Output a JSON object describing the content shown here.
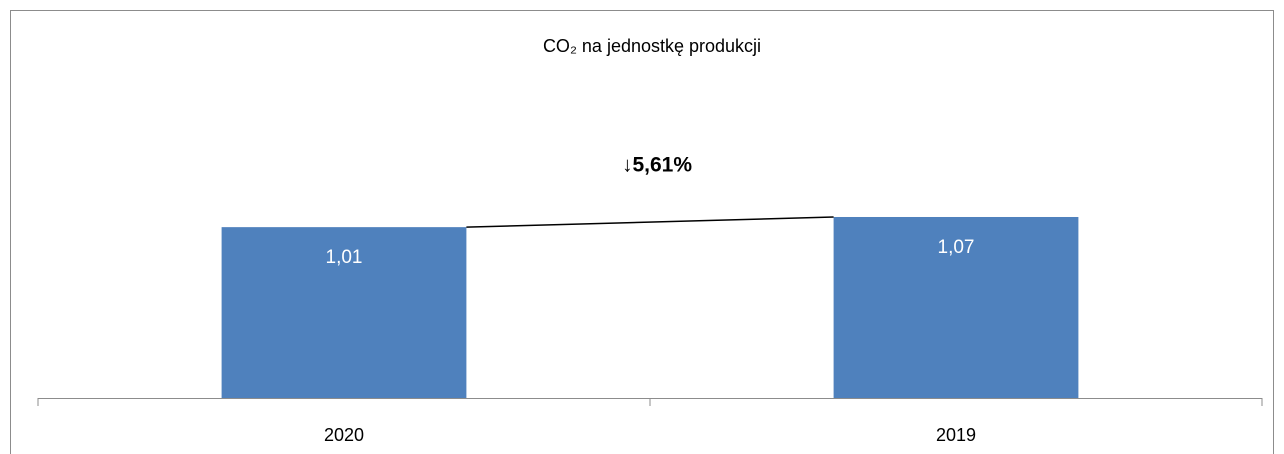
{
  "chart_data": {
    "type": "bar",
    "title": "CO₂ na jednostkę produkcji",
    "annotation": "↓5,61%",
    "categories": [
      "2020",
      "2019"
    ],
    "values": [
      1.01,
      1.07
    ],
    "value_labels": [
      "1,01",
      "1,07"
    ],
    "color": "#4f81bd",
    "ylim": [
      0,
      1.2
    ]
  }
}
